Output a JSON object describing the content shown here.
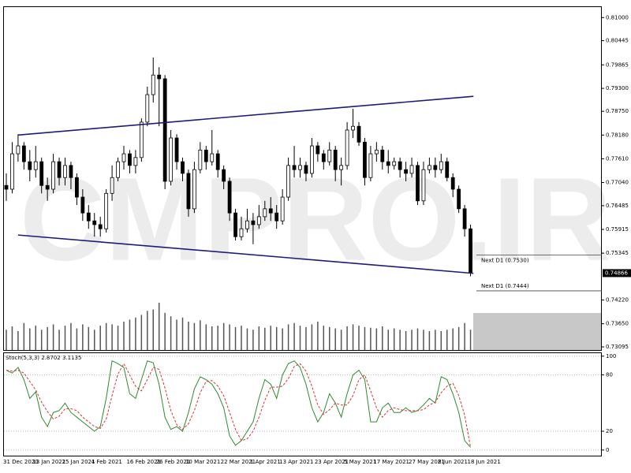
{
  "chart_data": {
    "type": "candlestick",
    "watermark": "CMPRO.IR",
    "categories": [
      "31 Dec 2020",
      null,
      null,
      null,
      null,
      "13 Jan 2021",
      null,
      null,
      null,
      null,
      "25 Jan 2021",
      null,
      null,
      null,
      null,
      "4 Feb 2021",
      null,
      null,
      null,
      null,
      null,
      "16 Feb 2021",
      null,
      null,
      null,
      null,
      "26 Feb 2021",
      null,
      null,
      null,
      null,
      "10 Mar 2021",
      null,
      null,
      null,
      null,
      null,
      "22 Mar 2021",
      null,
      null,
      null,
      null,
      "1 Apr 2021",
      null,
      null,
      null,
      null,
      "13 Apr 2021",
      null,
      null,
      null,
      null,
      null,
      "23 Apr 2021",
      null,
      null,
      null,
      null,
      "5 May 2021",
      null,
      null,
      null,
      null,
      "17 May 2021",
      null,
      null,
      null,
      null,
      null,
      "27 May 2021",
      null,
      null,
      null,
      null,
      "8 Jun 2021",
      null,
      null,
      null,
      null,
      "18 Jun 2021"
    ],
    "open": [
      0.7697,
      0.7688,
      0.7773,
      0.7792,
      0.7754,
      0.7735,
      0.7754,
      0.7697,
      0.7688,
      0.7754,
      0.7716,
      0.7745,
      0.7716,
      0.7669,
      0.7631,
      0.7612,
      0.7603,
      0.7593,
      0.7678,
      0.7716,
      0.7754,
      0.7773,
      0.7745,
      0.7764,
      0.7849,
      0.7915,
      0.7962,
      0.7953,
      0.7707,
      0.7811,
      0.7754,
      0.7726,
      0.7641,
      0.7735,
      0.7782,
      0.7754,
      0.7773,
      0.7735,
      0.7707,
      0.7631,
      0.7574,
      0.7593,
      0.7612,
      0.7603,
      0.7622,
      0.7641,
      0.7631,
      0.7612,
      0.7669,
      0.7745,
      0.7735,
      0.7745,
      0.7726,
      0.7792,
      0.7773,
      0.7754,
      0.7782,
      0.7735,
      0.7745,
      0.783,
      0.7839,
      0.7801,
      0.7716,
      0.7773,
      0.7782,
      0.7754,
      0.7745,
      0.7754,
      0.7735,
      0.7726,
      0.7745,
      0.766,
      0.7735,
      0.7745,
      0.7735,
      0.7754,
      0.7716,
      0.7688,
      0.7641,
      0.7593
    ],
    "high": [
      0.7726,
      0.7801,
      0.782,
      0.7801,
      0.7782,
      0.7792,
      0.7764,
      0.7716,
      0.7773,
      0.7764,
      0.7764,
      0.7754,
      0.7726,
      0.7688,
      0.765,
      0.7631,
      0.7622,
      0.7688,
      0.7745,
      0.7764,
      0.7792,
      0.7782,
      0.7782,
      0.7858,
      0.7934,
      0.8004,
      0.7981,
      0.7962,
      0.783,
      0.782,
      0.7764,
      0.7735,
      0.7754,
      0.7801,
      0.7792,
      0.783,
      0.7782,
      0.7745,
      0.7716,
      0.7641,
      0.7622,
      0.7641,
      0.7631,
      0.765,
      0.766,
      0.7669,
      0.765,
      0.7688,
      0.7764,
      0.7792,
      0.7764,
      0.7754,
      0.7811,
      0.7801,
      0.7782,
      0.7801,
      0.7792,
      0.7764,
      0.7849,
      0.7881,
      0.7849,
      0.7811,
      0.7792,
      0.7801,
      0.7792,
      0.7782,
      0.7764,
      0.7764,
      0.7754,
      0.7764,
      0.7754,
      0.7754,
      0.7764,
      0.7764,
      0.7773,
      0.7764,
      0.7726,
      0.7697,
      0.765,
      0.7603
    ],
    "low": [
      0.766,
      0.7678,
      0.7754,
      0.7735,
      0.7707,
      0.7716,
      0.7678,
      0.766,
      0.7678,
      0.7697,
      0.7697,
      0.7688,
      0.765,
      0.7612,
      0.7593,
      0.7574,
      0.7574,
      0.7584,
      0.766,
      0.7707,
      0.7735,
      0.7726,
      0.7726,
      0.7754,
      0.7839,
      0.7896,
      0.7839,
      0.7688,
      0.7697,
      0.7735,
      0.7707,
      0.7622,
      0.7631,
      0.7726,
      0.7735,
      0.7745,
      0.7716,
      0.7688,
      0.7612,
      0.7565,
      0.7565,
      0.7584,
      0.7556,
      0.7593,
      0.7612,
      0.7612,
      0.7593,
      0.7603,
      0.766,
      0.7716,
      0.7716,
      0.7707,
      0.7716,
      0.7754,
      0.7735,
      0.7745,
      0.7707,
      0.7697,
      0.7735,
      0.7811,
      0.7792,
      0.7697,
      0.7707,
      0.7754,
      0.7735,
      0.7726,
      0.7735,
      0.7716,
      0.7707,
      0.7716,
      0.765,
      0.765,
      0.7726,
      0.7716,
      0.7726,
      0.7707,
      0.7669,
      0.7631,
      0.7574,
      0.7479
    ],
    "close": [
      0.7688,
      0.7773,
      0.7792,
      0.7754,
      0.7735,
      0.7754,
      0.7697,
      0.7688,
      0.7754,
      0.7716,
      0.7745,
      0.7716,
      0.7669,
      0.7631,
      0.7612,
      0.7603,
      0.7593,
      0.7678,
      0.7716,
      0.7754,
      0.7773,
      0.7745,
      0.7764,
      0.7849,
      0.7915,
      0.7962,
      0.7953,
      0.7707,
      0.7811,
      0.7754,
      0.7726,
      0.7641,
      0.7735,
      0.7782,
      0.7754,
      0.7773,
      0.7735,
      0.7707,
      0.7631,
      0.7574,
      0.7593,
      0.7612,
      0.7603,
      0.7622,
      0.7641,
      0.7631,
      0.7612,
      0.7669,
      0.7745,
      0.7735,
      0.7745,
      0.7726,
      0.7792,
      0.7773,
      0.7754,
      0.7782,
      0.7735,
      0.7745,
      0.783,
      0.7839,
      0.7801,
      0.7716,
      0.7773,
      0.7782,
      0.7754,
      0.7745,
      0.7754,
      0.7735,
      0.7726,
      0.7745,
      0.766,
      0.7735,
      0.7745,
      0.7735,
      0.7754,
      0.7716,
      0.7688,
      0.7641,
      0.7593,
      0.74866
    ],
    "ylim": [
      0.7302,
      0.8127
    ],
    "yticks": [
      {
        "value": 0.81,
        "label": "0.81000"
      },
      {
        "value": 0.80445,
        "label": "0.80445"
      },
      {
        "value": 0.79865,
        "label": "0.79865"
      },
      {
        "value": 0.793,
        "label": "0.79300"
      },
      {
        "value": 0.7875,
        "label": "0.78750"
      },
      {
        "value": 0.7818,
        "label": "0.78180"
      },
      {
        "value": 0.7761,
        "label": "0.77610"
      },
      {
        "value": 0.7704,
        "label": "0.77040"
      },
      {
        "value": 0.76485,
        "label": "0.76485"
      },
      {
        "value": 0.75915,
        "label": "0.75915"
      },
      {
        "value": 0.75345,
        "label": "0.75345"
      },
      {
        "value": 0.7422,
        "label": "0.74220"
      },
      {
        "value": 0.7365,
        "label": "0.73650"
      },
      {
        "value": 0.73095,
        "label": "0.73095"
      }
    ],
    "trendlines": [
      {
        "x": [
          2,
          79.5
        ],
        "y": [
          0.7818,
          0.7911
        ],
        "color": "#1c1c7c"
      },
      {
        "x": [
          2,
          79.5
        ],
        "y": [
          0.7578,
          0.7486
        ],
        "color": "#1c1c7c"
      }
    ],
    "levels": [
      {
        "label": "Next D1 (0.7530)",
        "value": 0.753
      },
      {
        "label": "Next D1 (0.7444)",
        "value": 0.7444
      }
    ],
    "volume": {
      "color": "#555555",
      "values": [
        30,
        35,
        28,
        40,
        32,
        36,
        30,
        34,
        38,
        30,
        36,
        40,
        32,
        38,
        34,
        30,
        36,
        40,
        38,
        36,
        42,
        45,
        48,
        52,
        58,
        60,
        70,
        55,
        50,
        45,
        48,
        42,
        40,
        44,
        38,
        35,
        36,
        40,
        38,
        34,
        36,
        32,
        30,
        35,
        33,
        36,
        34,
        32,
        38,
        40,
        36,
        34,
        38,
        42,
        36,
        34,
        32,
        30,
        35,
        38,
        36,
        34,
        33,
        32,
        35,
        30,
        32,
        30,
        28,
        30,
        32,
        30,
        28,
        30,
        28,
        30,
        32,
        34,
        40,
        30
      ]
    },
    "stochastic": {
      "type": "line",
      "label": "Stoch(5,3,3) 2.8702 3.1135",
      "ylim": [
        -6,
        104
      ],
      "yticks": [
        0,
        20,
        80,
        100
      ],
      "series": [
        {
          "color": "#2e8b2e",
          "values": [
            85,
            82,
            88,
            75,
            55,
            62,
            35,
            25,
            40,
            42,
            50,
            40,
            35,
            30,
            25,
            20,
            25,
            55,
            95,
            92,
            88,
            60,
            55,
            75,
            95,
            93,
            70,
            35,
            22,
            25,
            20,
            40,
            65,
            78,
            75,
            70,
            60,
            45,
            15,
            5,
            10,
            20,
            30,
            55,
            75,
            70,
            55,
            80,
            92,
            95,
            88,
            70,
            45,
            30,
            40,
            60,
            50,
            35,
            60,
            80,
            85,
            75,
            30,
            30,
            45,
            50,
            40,
            40,
            45,
            40,
            42,
            48,
            55,
            50,
            78,
            75,
            60,
            40,
            10,
            2.8702
          ]
        },
        {
          "color": "#e03030",
          "dashed": true,
          "values": [
            85,
            84,
            85,
            82,
            73,
            64,
            51,
            41,
            33,
            36,
            44,
            44,
            42,
            35,
            30,
            25,
            23,
            33,
            58,
            81,
            92,
            80,
            68,
            63,
            75,
            88,
            86,
            66,
            42,
            27,
            22,
            28,
            42,
            61,
            73,
            74,
            68,
            58,
            40,
            22,
            10,
            12,
            20,
            35,
            53,
            67,
            67,
            68,
            76,
            89,
            92,
            84,
            68,
            48,
            38,
            43,
            50,
            48,
            48,
            58,
            75,
            80,
            63,
            45,
            35,
            42,
            45,
            43,
            42,
            42,
            42,
            43,
            48,
            51,
            61,
            68,
            71,
            58,
            37,
            3.1135
          ]
        }
      ]
    }
  }
}
